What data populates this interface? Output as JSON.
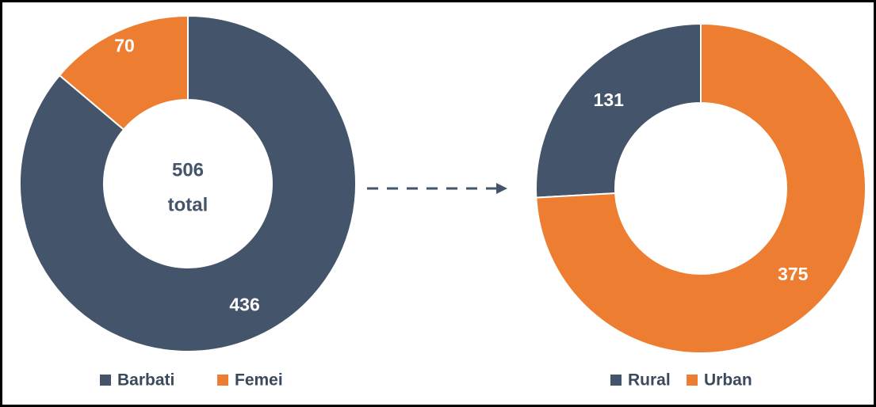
{
  "chart_data": [
    {
      "type": "donut",
      "direction": "clockwise",
      "categories": [
        "Barbati",
        "Femei"
      ],
      "values": [
        436,
        70
      ],
      "colors": [
        "#44546a",
        "#ed7d31"
      ],
      "center_value": 506,
      "center_label": "total"
    },
    {
      "type": "donut",
      "direction": "counterclockwise",
      "categories": [
        "Rural",
        "Urban"
      ],
      "values": [
        131,
        375
      ],
      "colors": [
        "#44546a",
        "#ed7d31"
      ]
    }
  ]
}
